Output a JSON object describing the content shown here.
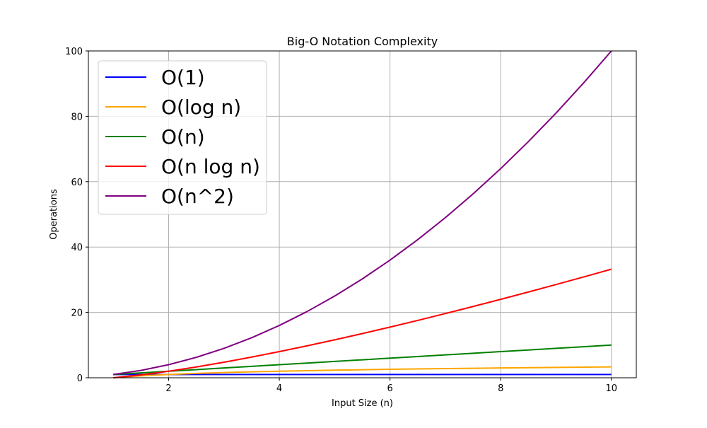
{
  "chart_data": {
    "type": "line",
    "title": "Big-O Notation Complexity",
    "xlabel": "Input Size (n)",
    "ylabel": "Operations",
    "xlim": [
      0.55,
      10.45
    ],
    "ylim": [
      0,
      100
    ],
    "xticks": [
      2,
      4,
      6,
      8,
      10
    ],
    "yticks": [
      0,
      20,
      40,
      60,
      80,
      100
    ],
    "grid": true,
    "legend_position": "upper-left",
    "x": [
      1,
      1.5,
      2,
      2.5,
      3,
      3.5,
      4,
      4.5,
      5,
      5.5,
      6,
      6.5,
      7,
      7.5,
      8,
      8.5,
      9,
      9.5,
      10
    ],
    "series": [
      {
        "name": "O(1)",
        "color": "#0000ff",
        "values": [
          1,
          1,
          1,
          1,
          1,
          1,
          1,
          1,
          1,
          1,
          1,
          1,
          1,
          1,
          1,
          1,
          1,
          1,
          1
        ]
      },
      {
        "name": "O(log n)",
        "color": "#ffa500",
        "values": [
          0,
          0.585,
          1,
          1.322,
          1.585,
          1.807,
          2,
          2.17,
          2.322,
          2.459,
          2.585,
          2.7,
          2.807,
          2.907,
          3,
          3.087,
          3.17,
          3.248,
          3.322
        ]
      },
      {
        "name": "O(n)",
        "color": "#008000",
        "values": [
          1,
          1.5,
          2,
          2.5,
          3,
          3.5,
          4,
          4.5,
          5,
          5.5,
          6,
          6.5,
          7,
          7.5,
          8,
          8.5,
          9,
          9.5,
          10
        ]
      },
      {
        "name": "O(n log n)",
        "color": "#ff0000",
        "values": [
          0,
          0.877,
          2,
          3.305,
          4.755,
          6.326,
          8,
          9.765,
          11.61,
          13.527,
          15.51,
          17.553,
          19.651,
          21.802,
          24,
          26.243,
          28.529,
          30.856,
          33.22
        ]
      },
      {
        "name": "O(n^2)",
        "color": "#800080",
        "values": [
          1,
          2.25,
          4,
          6.25,
          9,
          12.25,
          16,
          20.25,
          25,
          30.25,
          36,
          42.25,
          49,
          56.25,
          64,
          72.25,
          81,
          90.25,
          100
        ]
      }
    ]
  }
}
